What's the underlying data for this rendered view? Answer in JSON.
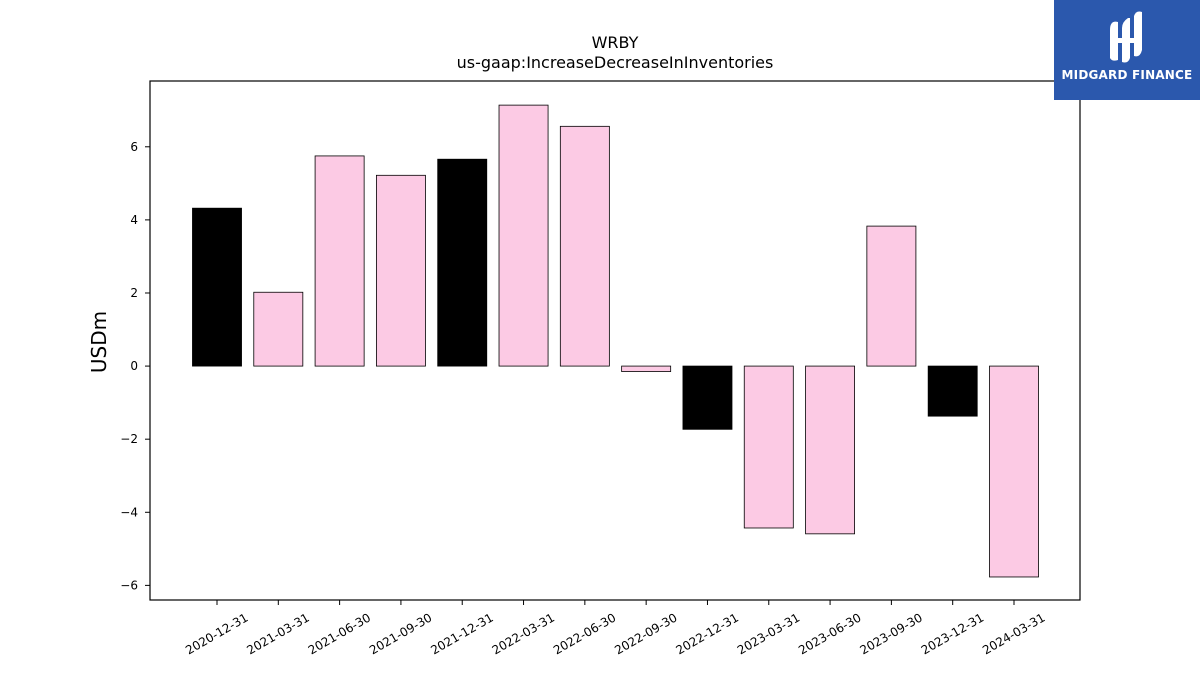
{
  "chart_data": {
    "type": "bar",
    "title": "WRBY",
    "subtitle": "us-gaap:IncreaseDecreaseInInventories",
    "ylabel": "USDm",
    "xlabel": "",
    "ylim": [
      -6.4,
      7.8
    ],
    "yticks": [
      -6,
      -4,
      -2,
      0,
      2,
      4,
      6
    ],
    "ytick_labels": [
      "−6",
      "−4",
      "−2",
      "0",
      "2",
      "4",
      "6"
    ],
    "categories": [
      "2020-12-31",
      "2021-03-31",
      "2021-06-30",
      "2021-09-30",
      "2021-12-31",
      "2022-03-31",
      "2022-06-30",
      "2022-09-30",
      "2022-12-31",
      "2023-03-31",
      "2023-06-30",
      "2023-09-30",
      "2023-12-31",
      "2024-03-31"
    ],
    "values": [
      4.32,
      2.02,
      5.75,
      5.22,
      5.66,
      7.14,
      6.56,
      -0.15,
      -1.73,
      -4.43,
      -4.59,
      3.83,
      -1.37,
      -5.77
    ],
    "bar_colors": [
      "#000000",
      "#fccae4",
      "#fccae4",
      "#fccae4",
      "#000000",
      "#fccae4",
      "#fccae4",
      "#fccae4",
      "#000000",
      "#fccae4",
      "#fccae4",
      "#fccae4",
      "#000000",
      "#fccae4"
    ],
    "grid": false,
    "legend": "none"
  },
  "logo": {
    "text": "MIDGARD FINANCE",
    "color": "#2b58ad"
  }
}
